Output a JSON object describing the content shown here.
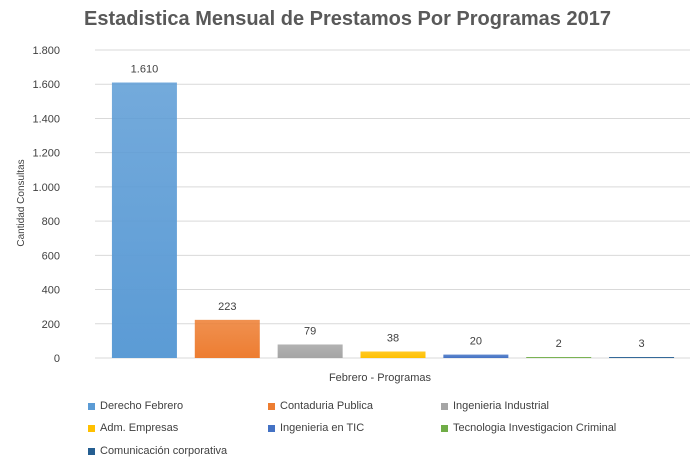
{
  "chart_data": {
    "type": "bar",
    "title": "Estadistica Mensual de Prestamos Por Programas 2017",
    "xlabel": "Febrero - Programas",
    "ylabel": "Cantidad Consultas",
    "ylim": [
      0,
      1800
    ],
    "yticks": [
      0,
      200,
      400,
      600,
      800,
      1000,
      1200,
      1400,
      1600,
      1800
    ],
    "ytick_labels": [
      "0",
      "200",
      "400",
      "600",
      "800",
      "1.000",
      "1.200",
      "1.400",
      "1.600",
      "1.800"
    ],
    "grid": true,
    "legend_position": "bottom",
    "series": [
      {
        "name": "Derecho Febrero",
        "value": 1610,
        "label": "1.610",
        "color": "#5B9BD5"
      },
      {
        "name": "Contaduria Publica",
        "value": 223,
        "label": "223",
        "color": "#ED7D31"
      },
      {
        "name": "Ingenieria Industrial",
        "value": 79,
        "label": "79",
        "color": "#A5A5A5"
      },
      {
        "name": "Adm. Empresas",
        "value": 38,
        "label": "38",
        "color": "#FFC000"
      },
      {
        "name": "Ingenieria en TIC",
        "value": 20,
        "label": "20",
        "color": "#4472C4"
      },
      {
        "name": "Tecnologia Investigacion Criminal",
        "value": 2,
        "label": "2",
        "color": "#70AD47"
      },
      {
        "name": "Comunicación corporativa",
        "value": 3,
        "label": "3",
        "color": "#255E91"
      }
    ]
  }
}
